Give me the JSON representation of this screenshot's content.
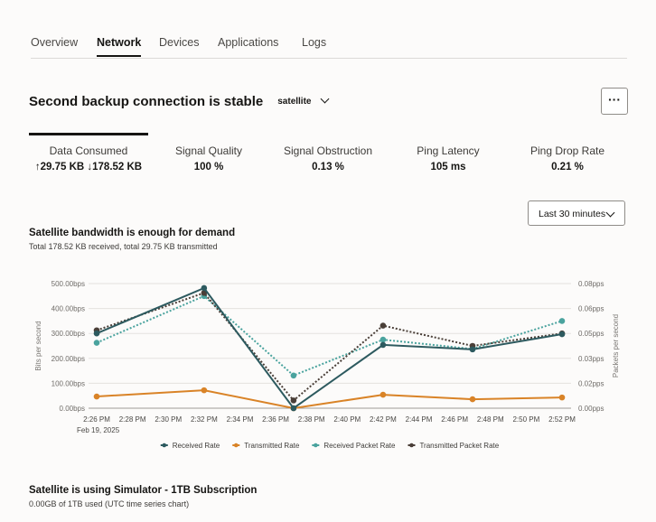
{
  "tabs": [
    {
      "label": "Overview"
    },
    {
      "label": "Network",
      "active": true
    },
    {
      "label": "Devices"
    },
    {
      "label": "Applications"
    },
    {
      "label": "Logs"
    }
  ],
  "header": {
    "title": "Second backup connection is stable",
    "connection_select": "satellite",
    "more_label": "···"
  },
  "metrics": [
    {
      "label": "Data Consumed",
      "value": "↑29.75 KB ↓178.52 KB"
    },
    {
      "label": "Signal Quality",
      "value": "100 %"
    },
    {
      "label": "Signal Obstruction",
      "value": "0.13 %"
    },
    {
      "label": "Ping Latency",
      "value": "105 ms"
    },
    {
      "label": "Ping Drop Rate",
      "value": "0.21 %"
    }
  ],
  "time_range": "Last 30 minutes",
  "bandwidth": {
    "title": "Satellite bandwidth is enough for demand",
    "subtitle": "Total 178.52 KB received, total 29.75 KB transmitted"
  },
  "subscription": {
    "title": "Satellite is using Simulator - 1TB Subscription",
    "subtitle": "0.00GB of 1TB used (UTC time series chart)"
  },
  "colors": {
    "received": "#2d5a5f",
    "transmitted": "#d98327",
    "received_packet": "#4aa39e",
    "transmitted_packet": "#4a3f38"
  },
  "chart_data": {
    "type": "line",
    "ylabel": "Bits per second",
    "y2label": "Packets per second",
    "ylim": [
      0,
      500
    ],
    "y2lim": [
      0,
      0.08
    ],
    "yticks": [
      "0.00bps",
      "100.00bps",
      "200.00bps",
      "300.00bps",
      "400.00bps",
      "500.00bps"
    ],
    "y2ticks": [
      "0.00pps",
      "0.02pps",
      "0.03pps",
      "0.05pps",
      "0.06pps",
      "0.08pps"
    ],
    "xticks": [
      "2:26 PM",
      "2:28 PM",
      "2:30 PM",
      "2:32 PM",
      "2:34 PM",
      "2:36 PM",
      "2:38 PM",
      "2:40 PM",
      "2:42 PM",
      "2:44 PM",
      "2:46 PM",
      "2:48 PM",
      "2:50 PM",
      "2:52 PM"
    ],
    "xdate": "Feb 19, 2025",
    "x": [
      "2:26 PM",
      "2:32 PM",
      "2:37 PM",
      "2:42 PM",
      "2:47 PM",
      "2:52 PM"
    ],
    "grid": true,
    "legend": "bottom",
    "series": [
      {
        "name": "Received Rate",
        "axis": "left",
        "style": "solid",
        "values": [
          300,
          482,
          0,
          254,
          236,
          297
        ]
      },
      {
        "name": "Transmitted Rate",
        "axis": "left",
        "style": "solid",
        "values": [
          47,
          72,
          0,
          54,
          36,
          43
        ]
      },
      {
        "name": "Received Packet Rate",
        "axis": "right",
        "style": "dotted",
        "values": [
          0.042,
          0.072,
          0.021,
          0.044,
          0.038,
          0.056
        ]
      },
      {
        "name": "Transmitted Packet Rate",
        "axis": "right",
        "style": "dotted",
        "values": [
          0.05,
          0.074,
          0.005,
          0.053,
          0.04,
          0.048
        ]
      }
    ]
  }
}
